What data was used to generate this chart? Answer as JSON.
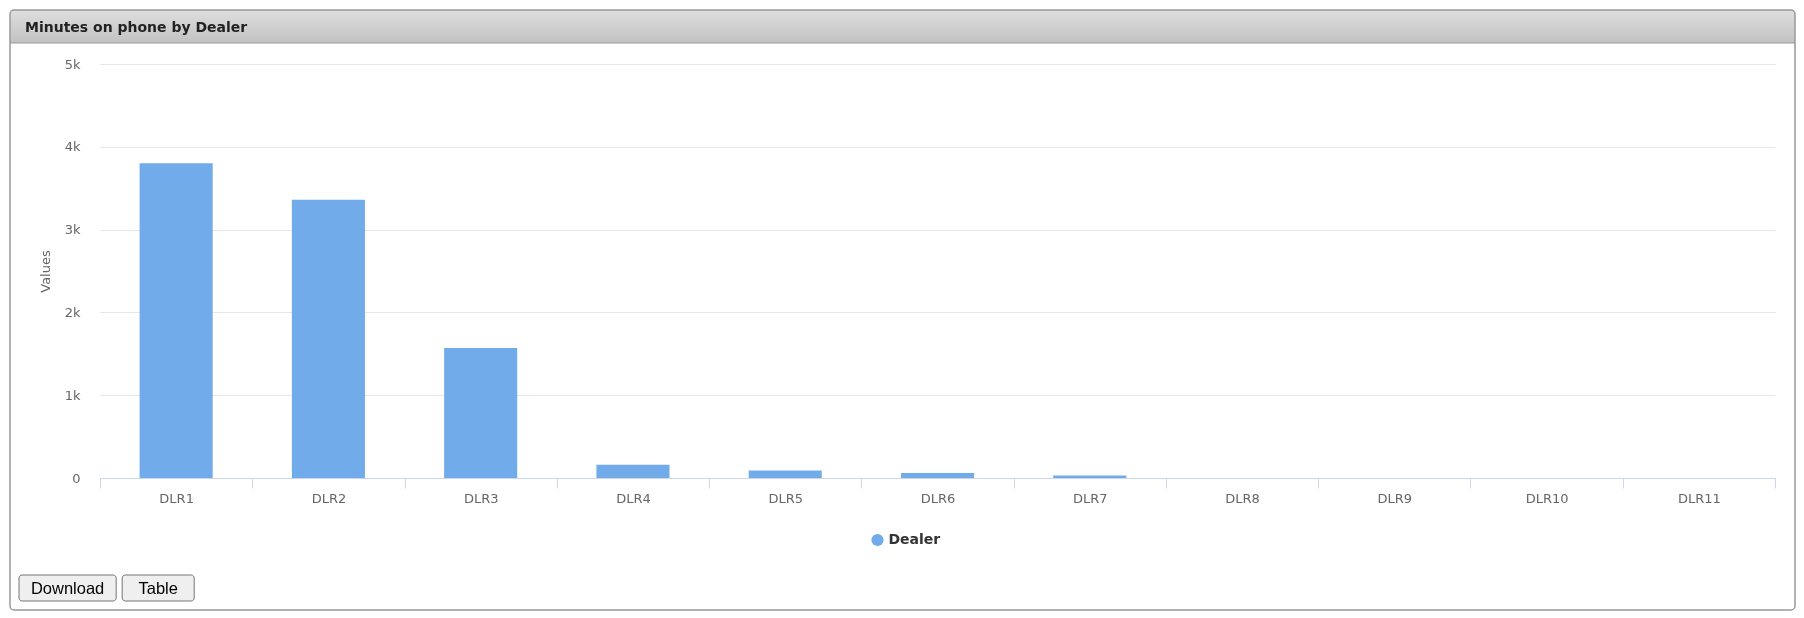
{
  "chart_data": {
    "type": "bar",
    "title": "Minutes on phone by Dealer",
    "ylabel": "Values",
    "categories": [
      "DLR1",
      "DLR2",
      "DLR3",
      "DLR4",
      "DLR5",
      "DLR6",
      "DLR7",
      "DLR8",
      "DLR9",
      "DLR10",
      "DLR11"
    ],
    "series": [
      {
        "name": "Dealer",
        "color": "#72abe9",
        "values": [
          3800,
          3360,
          1570,
          160,
          90,
          60,
          30,
          0,
          0,
          0,
          0
        ]
      }
    ],
    "ylim": [
      0,
      5000
    ],
    "yticks": [
      0,
      {
        "value": 1000,
        "label": "1k"
      },
      {
        "value": 2000,
        "label": "2k"
      },
      {
        "value": 3000,
        "label": "3k"
      },
      {
        "value": 4000,
        "label": "4k"
      },
      {
        "value": 5000,
        "label": "5k"
      }
    ],
    "grid": "y",
    "legend": "bottom",
    "annotations": [
      "Download",
      "Table"
    ]
  }
}
